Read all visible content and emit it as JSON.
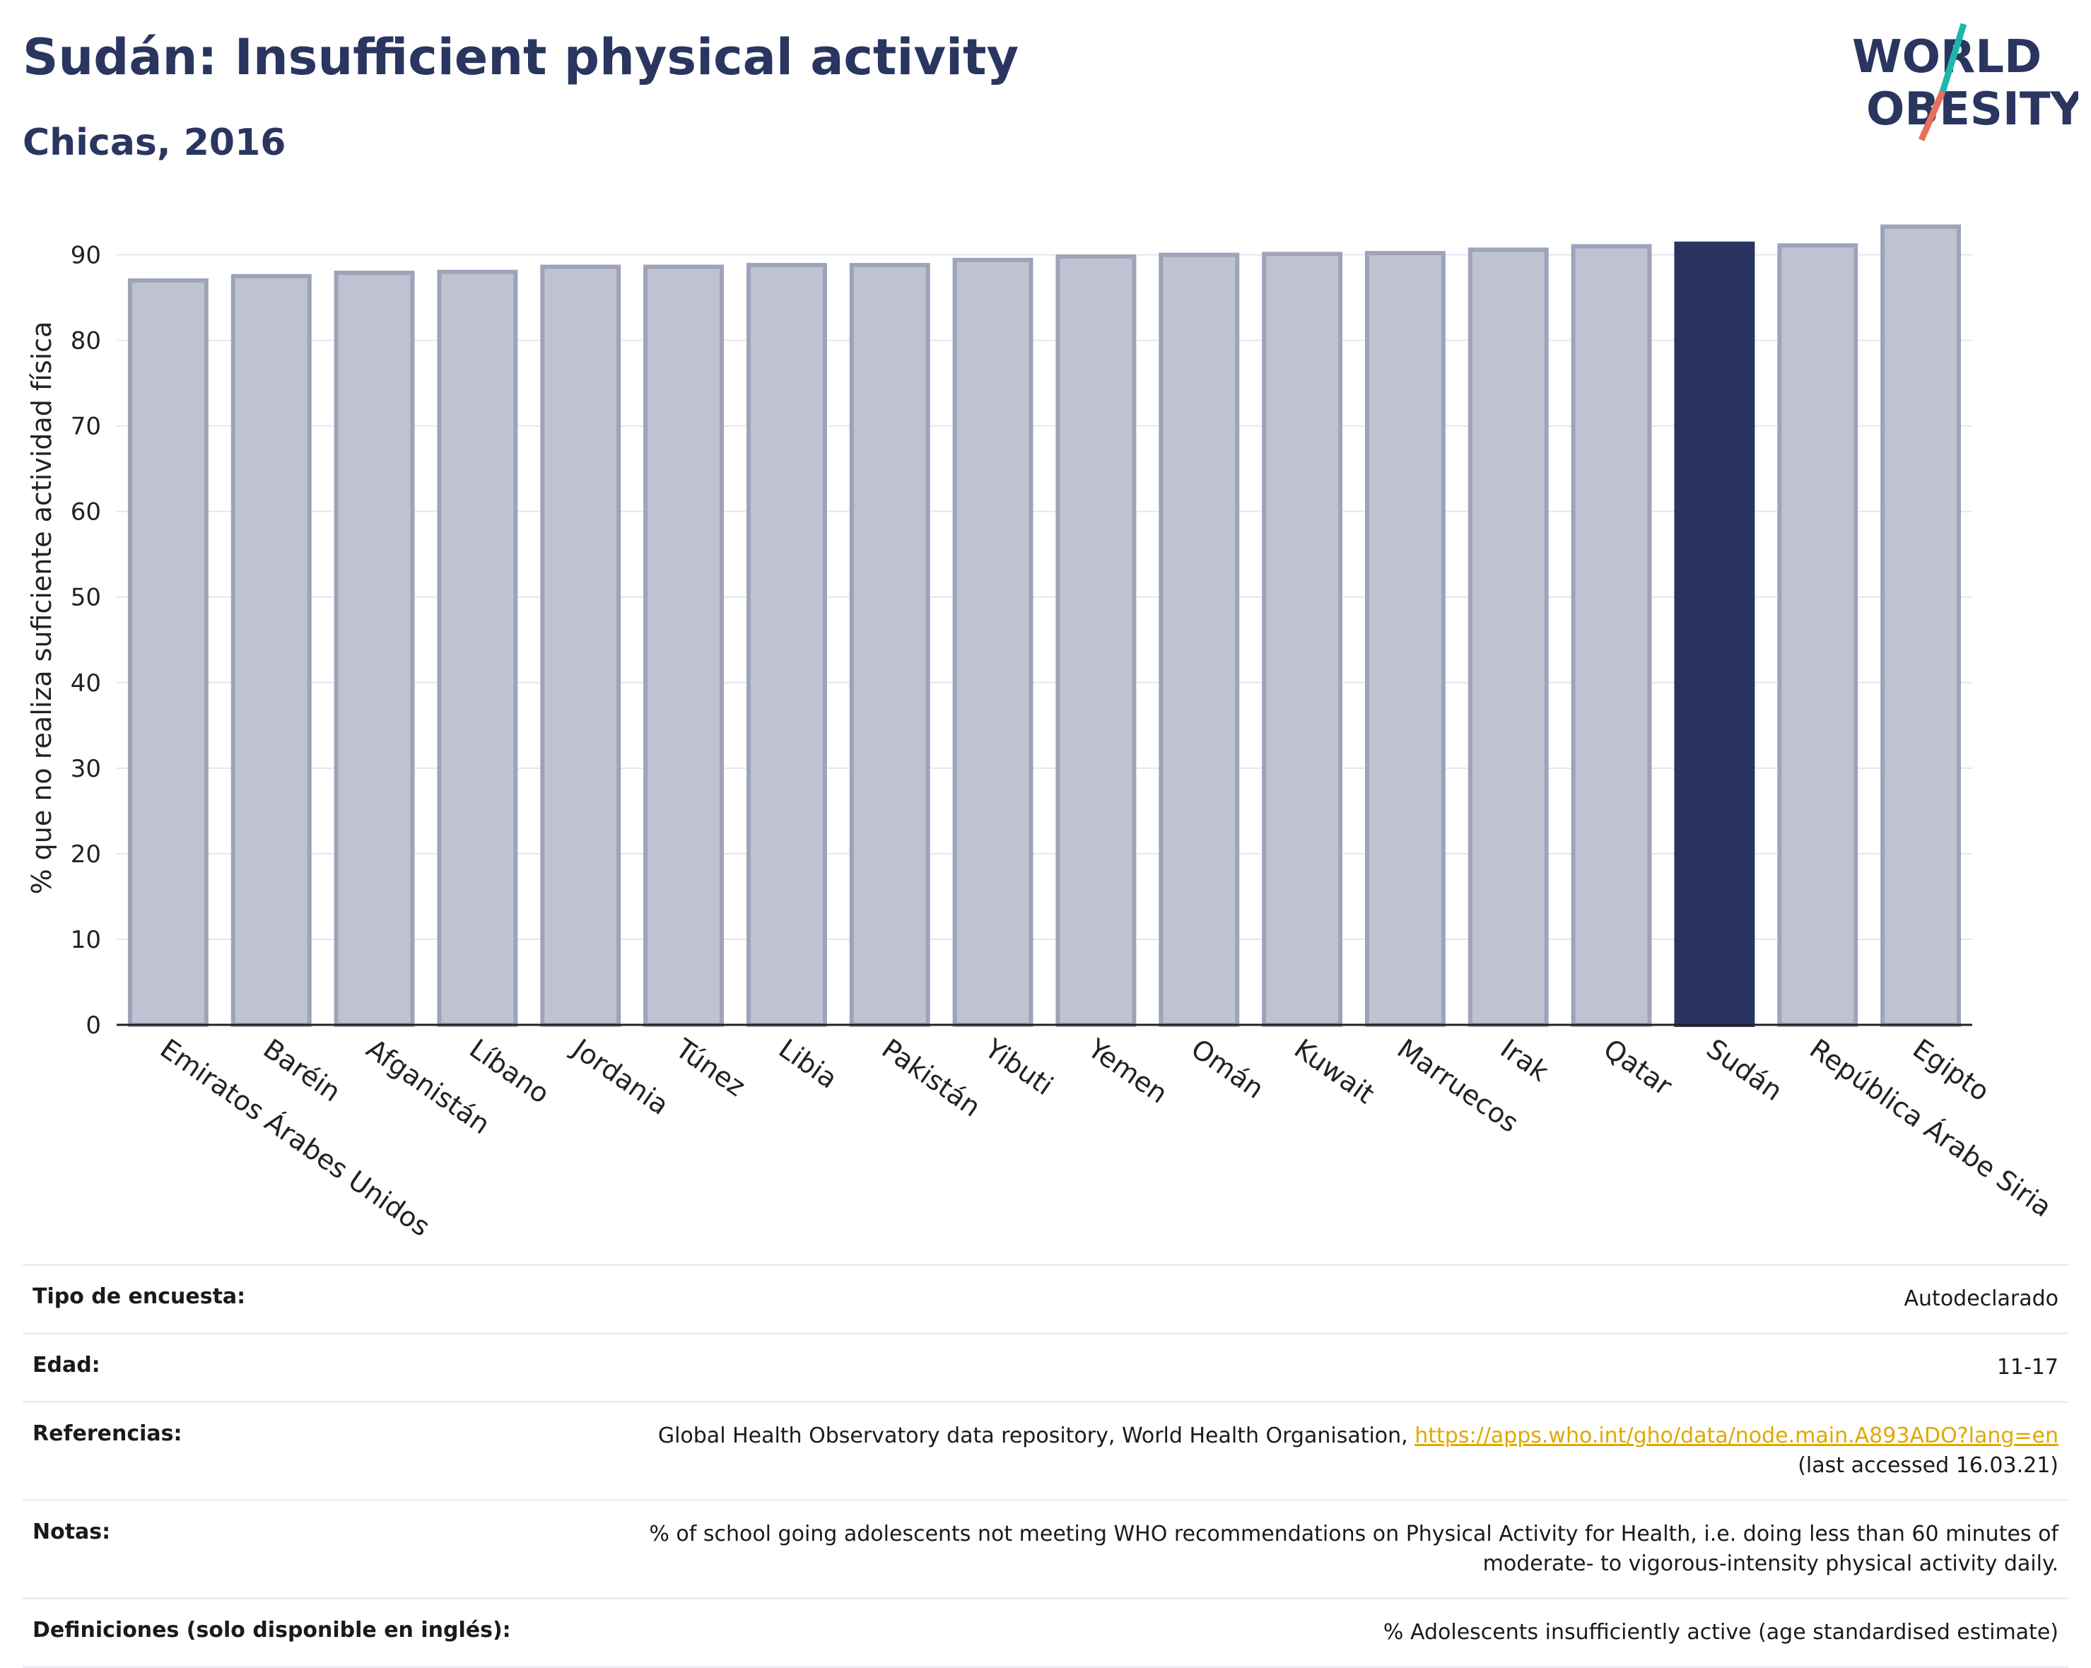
{
  "header": {
    "title": "Sudán: Insufficient physical activity",
    "subtitle": "Chicas, 2016"
  },
  "logo": {
    "line1": "WORLD",
    "line2": "OBESITY",
    "colors": {
      "text": "#2a3560",
      "slash_teal": "#1fb5ad",
      "slash_coral": "#e8705a"
    }
  },
  "colors": {
    "bar": "#bfc2d0",
    "bar_border": "#9ea3ba",
    "highlight": "#293560",
    "grid": "#e6e7ec",
    "axis": "#222222"
  },
  "chart_data": {
    "type": "bar",
    "ylabel": "% que no realiza suficiente actividad física",
    "ylim": [
      0,
      95
    ],
    "yticks": [
      0,
      10,
      20,
      30,
      40,
      50,
      60,
      70,
      80,
      90
    ],
    "grid": true,
    "highlight": "Sudán",
    "categories": [
      "Emiratos Árabes Unidos",
      "Baréin",
      "Afganistán",
      "Líbano",
      "Jordania",
      "Túnez",
      "Libia",
      "Pakistán",
      "Yibuti",
      "Yemen",
      "Omán",
      "Kuwait",
      "Marruecos",
      "Irak",
      "Qatar",
      "Sudán",
      "República Árabe Siria",
      "Egipto"
    ],
    "values": [
      87.0,
      87.5,
      87.9,
      88.0,
      88.6,
      88.6,
      88.8,
      88.8,
      89.4,
      89.8,
      90.0,
      90.1,
      90.2,
      90.6,
      91.0,
      91.3,
      91.1,
      93.3
    ]
  },
  "info": {
    "rows": [
      {
        "label": "Tipo de encuesta:",
        "value": "Autodeclarado"
      },
      {
        "label": "Edad:",
        "value": "11-17"
      },
      {
        "label": "Referencias:",
        "value": "Global Health Observatory data repository, World Health Organisation,",
        "link": "https://apps.who.int/gho/data/node.main.A893ADO?lang=en",
        "value2": "(last accessed 16.03.21)"
      },
      {
        "label": "Notas:",
        "value": "% of school going adolescents not meeting WHO recommendations on Physical Activity for Health, i.e. doing less than 60 minutes of",
        "value2": "moderate- to vigorous-intensity physical activity daily."
      },
      {
        "label": "Definiciones (solo disponible en inglés):",
        "value": "% Adolescents insufficiently active (age standardised estimate)"
      }
    ]
  }
}
